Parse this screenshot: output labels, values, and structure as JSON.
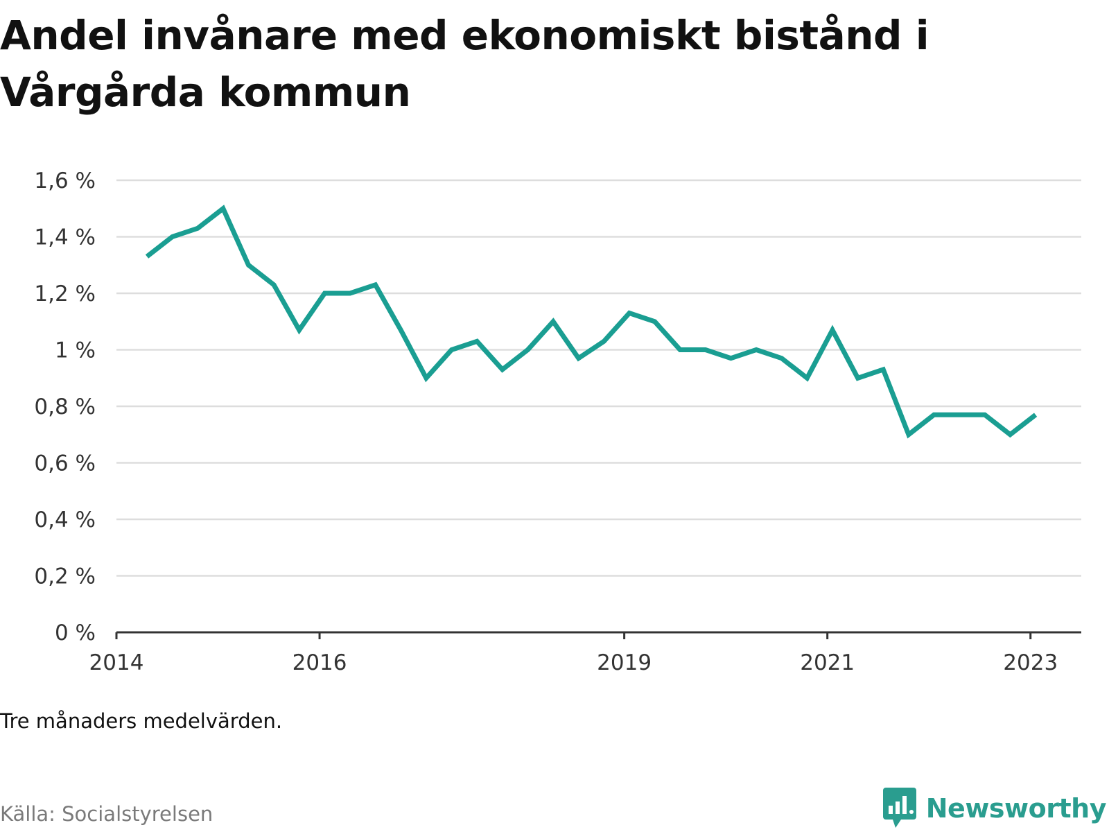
{
  "header": {
    "title": "Andel invånare med ekonomiskt bistånd i Vårgårda kommun"
  },
  "footer": {
    "note": "Tre månaders medelvärden.",
    "source": "Källa: Socialstyrelsen",
    "brand": "Newsworthy"
  },
  "colors": {
    "line": "#1a9e92",
    "grid": "#dddddd",
    "axis": "#333333",
    "brand": "#2a9d8f"
  },
  "chart_data": {
    "type": "line",
    "title": "Andel invånare med ekonomiskt bistånd i Vårgårda kommun",
    "xlabel": "",
    "ylabel": "",
    "ylim": [
      0,
      1.6
    ],
    "grid": true,
    "y_ticks": [
      {
        "value": 0,
        "label": "0 %"
      },
      {
        "value": 0.2,
        "label": "0,2 %"
      },
      {
        "value": 0.4,
        "label": "0,4 %"
      },
      {
        "value": 0.6,
        "label": "0,6 %"
      },
      {
        "value": 0.8,
        "label": "0,8 %"
      },
      {
        "value": 1.0,
        "label": "1 %"
      },
      {
        "value": 1.2,
        "label": "1,2 %"
      },
      {
        "value": 1.4,
        "label": "1,4 %"
      },
      {
        "value": 1.6,
        "label": "1,6 %"
      }
    ],
    "xlim": [
      2014.0,
      2023.5
    ],
    "x_ticks": [
      {
        "value": 2014.0,
        "label": "2014"
      },
      {
        "value": 2016.0,
        "label": "2016"
      },
      {
        "value": 2019.0,
        "label": "2019"
      },
      {
        "value": 2021.0,
        "label": "2021"
      },
      {
        "value": 2023.0,
        "label": "2023"
      }
    ],
    "series": [
      {
        "name": "Andel invånare med ekonomiskt bistånd",
        "x": [
          2014.3,
          2014.55,
          2014.8,
          2015.05,
          2015.3,
          2015.55,
          2015.8,
          2016.05,
          2016.3,
          2016.55,
          2016.8,
          2017.05,
          2017.3,
          2017.55,
          2017.8,
          2018.05,
          2018.3,
          2018.55,
          2018.8,
          2019.05,
          2019.3,
          2019.55,
          2019.8,
          2020.05,
          2020.3,
          2020.55,
          2020.8,
          2021.05,
          2021.3,
          2021.55,
          2021.8,
          2022.05,
          2022.3,
          2022.55,
          2022.8,
          2023.05
        ],
        "values": [
          1.33,
          1.4,
          1.43,
          1.5,
          1.3,
          1.23,
          1.07,
          1.2,
          1.2,
          1.23,
          1.07,
          0.9,
          1.0,
          1.03,
          0.93,
          1.0,
          1.1,
          0.97,
          1.03,
          1.13,
          1.1,
          1.0,
          1.0,
          0.97,
          1.0,
          0.97,
          0.9,
          1.07,
          0.9,
          0.93,
          0.7,
          0.77,
          0.77,
          0.77,
          0.7,
          0.77
        ]
      }
    ]
  }
}
